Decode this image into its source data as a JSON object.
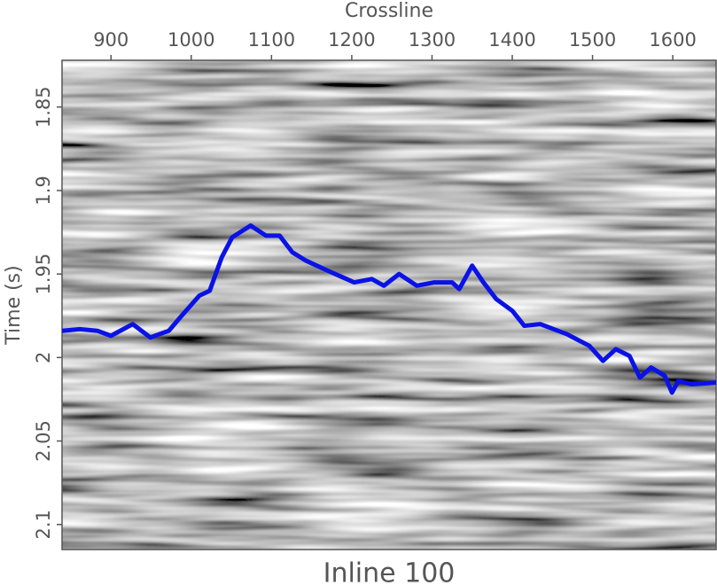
{
  "chart_data": {
    "type": "line",
    "title": "Inline 100",
    "x_label": "Crossline",
    "y_label": "Time (s)",
    "x_axis_position": "top",
    "y_inverted": true,
    "x": [
      839,
      861,
      883,
      900,
      927,
      949,
      972,
      988,
      1010,
      1023,
      1038,
      1051,
      1074,
      1093,
      1110,
      1126,
      1143,
      1170,
      1203,
      1225,
      1240,
      1259,
      1281,
      1303,
      1325,
      1334,
      1350,
      1364,
      1380,
      1400,
      1415,
      1435,
      1468,
      1496,
      1513,
      1529,
      1546,
      1559,
      1573,
      1590,
      1599,
      1607,
      1623,
      1654
    ],
    "series": [
      {
        "color": "#0a12e6",
        "values": [
          1.984,
          1.983,
          1.984,
          1.987,
          1.98,
          1.988,
          1.984,
          1.975,
          1.963,
          1.96,
          1.94,
          1.928,
          1.921,
          1.927,
          1.927,
          1.937,
          1.942,
          1.948,
          1.955,
          1.953,
          1.957,
          1.95,
          1.957,
          1.955,
          1.955,
          1.959,
          1.945,
          1.955,
          1.965,
          1.972,
          1.981,
          1.98,
          1.986,
          1.993,
          2.002,
          1.995,
          1.999,
          2.012,
          2.006,
          2.011,
          2.021,
          2.014,
          2.016,
          2.015
        ]
      }
    ],
    "xlim": [
      839,
      1654
    ],
    "ylim": [
      1.822,
      2.115
    ],
    "xticks": [
      900,
      1000,
      1100,
      1200,
      1300,
      1400,
      1500,
      1600
    ],
    "yticks": [
      1.85,
      1.9,
      1.95,
      2,
      2.05,
      2.1
    ]
  }
}
